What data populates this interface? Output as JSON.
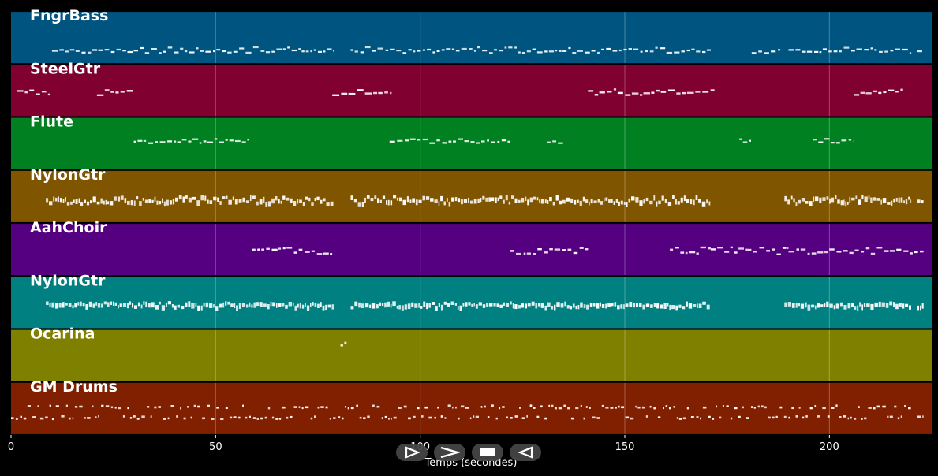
{
  "player": {
    "controls": [
      {
        "name": "play-outline-button",
        "icon": "play-outline-icon"
      },
      {
        "name": "next-button",
        "icon": "chevron-right-icon"
      },
      {
        "name": "stop-button",
        "icon": "stop-icon"
      },
      {
        "name": "previous-button",
        "icon": "back-outline-icon"
      }
    ]
  },
  "chart_data": {
    "type": "piano-roll",
    "xlabel": "Temps (secondes)",
    "xlim": [
      0,
      225
    ],
    "xticks": [
      0,
      50,
      100,
      150,
      200
    ],
    "grid": true,
    "note_color": "#ffffff",
    "tracks": [
      {
        "name": "FngrBass",
        "color": "#005580",
        "segments": [
          [
            10,
            79
          ],
          [
            83,
            171
          ],
          [
            181,
            188
          ],
          [
            190,
            220
          ],
          [
            221.5,
            223
          ]
        ]
      },
      {
        "name": "SteelGtr",
        "color": "#800030",
        "segments": [
          [
            1.5,
            9.5
          ],
          [
            21,
            30
          ],
          [
            78.5,
            93
          ],
          [
            141,
            172
          ],
          [
            206,
            218
          ]
        ]
      },
      {
        "name": "Flute",
        "color": "#008020",
        "segments": [
          [
            30,
            58.5
          ],
          [
            92.5,
            122
          ],
          [
            131,
            135
          ],
          [
            178,
            181
          ],
          [
            196,
            206
          ]
        ]
      },
      {
        "name": "NylonGtr",
        "color": "#805500",
        "segments": [
          [
            8.5,
            79
          ],
          [
            83,
            171
          ],
          [
            189,
            220
          ],
          [
            221.5,
            223
          ]
        ]
      },
      {
        "name": "AahChoir",
        "color": "#550080",
        "segments": [
          [
            59,
            78.5
          ],
          [
            122,
            141
          ],
          [
            161,
            171
          ],
          [
            171,
            180
          ],
          [
            180,
            190
          ],
          [
            190,
            223
          ]
        ]
      },
      {
        "name": "NylonGtr",
        "color": "#008080",
        "segments": [
          [
            8.5,
            79
          ],
          [
            83,
            171
          ],
          [
            189,
            220
          ],
          [
            221.5,
            223
          ]
        ]
      },
      {
        "name": "Ocarina",
        "color": "#808000",
        "segments": [
          [
            80.5,
            82
          ]
        ]
      },
      {
        "name": "GM Drums",
        "color": "#802000",
        "segments": [
          [
            0,
            10
          ],
          [
            10,
            220
          ],
          [
            221.5,
            223
          ]
        ]
      }
    ]
  }
}
